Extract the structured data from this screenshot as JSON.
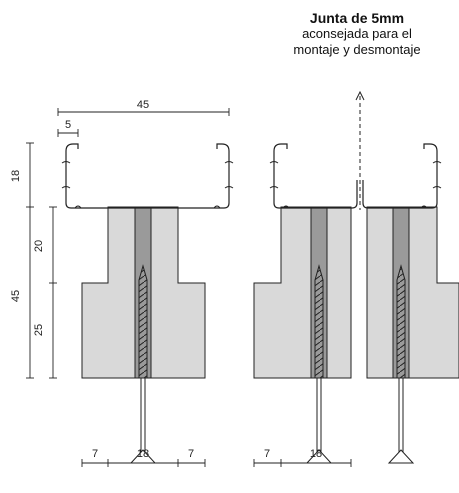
{
  "annotation": {
    "title": "Junta de 5mm",
    "line1": "aconsejada para el",
    "line2": "montaje y desmontaje"
  },
  "dimensions": {
    "profile_width": "45",
    "lip": "5",
    "profile_height": "18",
    "block_height": "45",
    "upper_part": "20",
    "lower_part": "25",
    "bottom_left_side": "7",
    "bottom_left_core": "18",
    "bottom_left_side_right": "7",
    "bottom_right_side": "7",
    "bottom_right_core": "18"
  },
  "colors": {
    "line": "#222222",
    "block_fill": "#d9d9d9",
    "core_fill": "#9a9a9a"
  }
}
